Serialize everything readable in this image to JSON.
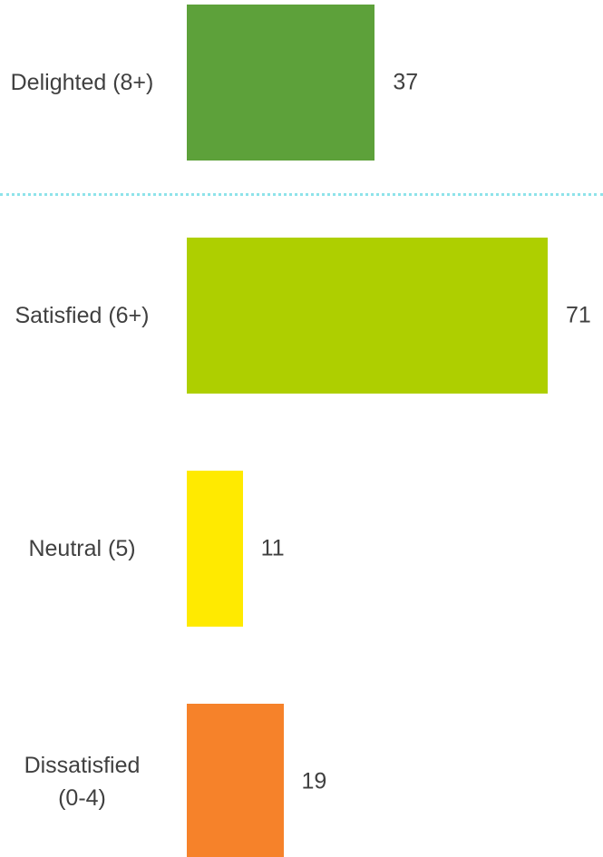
{
  "chart_data": {
    "type": "bar",
    "orientation": "horizontal",
    "categories": [
      "Delighted (8+)",
      "Satisfied (6+)",
      "Neutral (5)",
      "Dissatisfied (0-4)"
    ],
    "values": [
      37,
      71,
      11,
      19
    ],
    "colors": [
      "#5da13a",
      "#aecf00",
      "#ffea00",
      "#f6822a"
    ]
  }
}
